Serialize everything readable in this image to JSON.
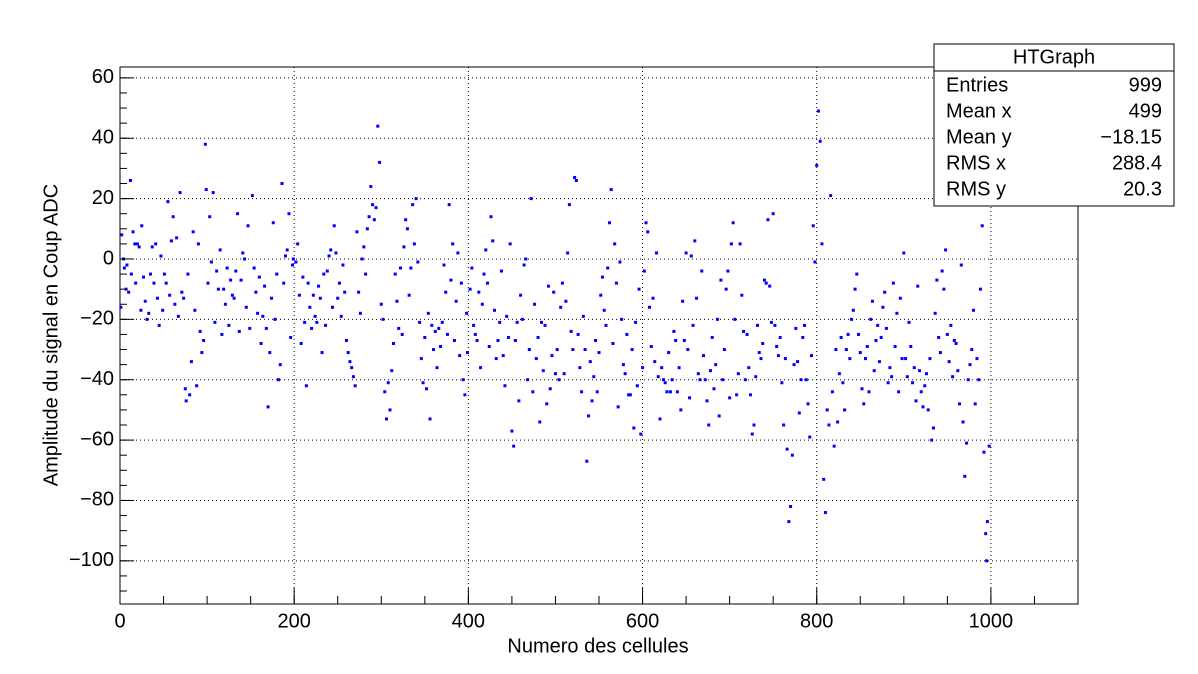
{
  "chart_data": {
    "type": "scatter",
    "x_label": "Numero des cellules",
    "y_label": "Amplitude du signal en Coup ADC",
    "color": "#0000ff",
    "grid": true,
    "xlim": [
      0,
      1100
    ],
    "ylim": [
      -114.3,
      63.6
    ],
    "xticks": [
      0,
      200,
      400,
      600,
      800,
      1000
    ],
    "yticks": [
      {
        "value": -100,
        "label": "−100"
      },
      {
        "value": -80,
        "label": "−80"
      },
      {
        "value": -60,
        "label": "−60"
      },
      {
        "value": -40,
        "label": "−40"
      },
      {
        "value": -20,
        "label": "−20"
      },
      0,
      20,
      40,
      60
    ],
    "stats_box": {
      "title": "HTGraph",
      "rows": [
        [
          "Entries",
          "999"
        ],
        [
          "Mean x",
          "499"
        ],
        [
          "Mean y",
          "−18.15"
        ],
        [
          "RMS x",
          "288.4"
        ],
        [
          "RMS y",
          "20.3"
        ]
      ]
    },
    "x": [
      1,
      2,
      4,
      5,
      7,
      8,
      10,
      12,
      13,
      15,
      17,
      18,
      20,
      22,
      24,
      25,
      27,
      29,
      31,
      33,
      35,
      37,
      39,
      41,
      43,
      45,
      47,
      49,
      51,
      53,
      55,
      57,
      59,
      61,
      63,
      65,
      67,
      69,
      71,
      73,
      75,
      76,
      78,
      80,
      82,
      84,
      86,
      88,
      90,
      92,
      94,
      96,
      98,
      99,
      101,
      103,
      105,
      107,
      109,
      111,
      113,
      115,
      117,
      119,
      121,
      123,
      125,
      127,
      129,
      131,
      133,
      135,
      137,
      139,
      141,
      143,
      145,
      147,
      149,
      152,
      154,
      156,
      158,
      160,
      162,
      164,
      166,
      168,
      170,
      172,
      174,
      176,
      178,
      180,
      182,
      184,
      186,
      188,
      190,
      192,
      194,
      196,
      198,
      199,
      202,
      204,
      206,
      208,
      210,
      212,
      214,
      216,
      218,
      220,
      222,
      224,
      226,
      228,
      230,
      232,
      234,
      236,
      238,
      240,
      242,
      244,
      246,
      248,
      250,
      252,
      254,
      256,
      258,
      260,
      262,
      264,
      266,
      268,
      270,
      272,
      274,
      276,
      278,
      280,
      282,
      284,
      286,
      288,
      290,
      292,
      294,
      296,
      298,
      300,
      302,
      304,
      306,
      308,
      310,
      312,
      314,
      316,
      318,
      320,
      322,
      324,
      326,
      328,
      330,
      332,
      334,
      336,
      338,
      340,
      342,
      344,
      346,
      348,
      350,
      352,
      354,
      356,
      358,
      360,
      362,
      364,
      366,
      368,
      370,
      372,
      374,
      376,
      378,
      380,
      382,
      384,
      386,
      388,
      390,
      392,
      394,
      396,
      398,
      399,
      402,
      404,
      406,
      408,
      410,
      412,
      414,
      416,
      418,
      420,
      422,
      424,
      426,
      428,
      430,
      432,
      434,
      436,
      438,
      440,
      442,
      444,
      446,
      448,
      450,
      452,
      454,
      456,
      458,
      460,
      462,
      464,
      466,
      468,
      470,
      472,
      474,
      476,
      478,
      480,
      482,
      484,
      486,
      488,
      490,
      492,
      494,
      496,
      498,
      500,
      502,
      504,
      506,
      508,
      510,
      512,
      514,
      516,
      518,
      520,
      522,
      524,
      526,
      528,
      530,
      532,
      534,
      536,
      538,
      540,
      542,
      544,
      546,
      548,
      550,
      552,
      554,
      556,
      558,
      560,
      562,
      564,
      566,
      568,
      570,
      572,
      574,
      576,
      578,
      580,
      582,
      584,
      586,
      588,
      590,
      592,
      594,
      596,
      598,
      600,
      602,
      604,
      606,
      608,
      610,
      612,
      614,
      616,
      618,
      620,
      622,
      624,
      626,
      628,
      630,
      632,
      634,
      636,
      638,
      640,
      642,
      644,
      646,
      648,
      650,
      652,
      654,
      656,
      658,
      660,
      662,
      664,
      666,
      668,
      670,
      672,
      674,
      676,
      678,
      680,
      682,
      684,
      686,
      688,
      690,
      692,
      694,
      696,
      698,
      700,
      702,
      704,
      706,
      708,
      710,
      712,
      714,
      716,
      718,
      720,
      722,
      724,
      726,
      728,
      730,
      732,
      734,
      736,
      738,
      740,
      742,
      744,
      746,
      748,
      750,
      752,
      754,
      756,
      758,
      760,
      762,
      764,
      766,
      768,
      770,
      772,
      774,
      776,
      778,
      780,
      782,
      784,
      786,
      788,
      790,
      792,
      794,
      796,
      798,
      800,
      802,
      804,
      806,
      808,
      810,
      812,
      814,
      816,
      818,
      820,
      822,
      824,
      826,
      828,
      830,
      832,
      834,
      836,
      838,
      840,
      842,
      844,
      846,
      848,
      850,
      852,
      854,
      856,
      858,
      860,
      862,
      864,
      866,
      868,
      870,
      872,
      874,
      876,
      878,
      880,
      882,
      884,
      886,
      888,
      890,
      892,
      894,
      896,
      898,
      900,
      902,
      904,
      906,
      908,
      910,
      912,
      914,
      916,
      918,
      920,
      922,
      924,
      926,
      928,
      930,
      932,
      934,
      936,
      938,
      940,
      942,
      944,
      946,
      948,
      950,
      952,
      954,
      956,
      958,
      960,
      962,
      964,
      966,
      968,
      970,
      972,
      974,
      976,
      978,
      980,
      982,
      984,
      986,
      988,
      990,
      992,
      994,
      995,
      996,
      998
    ],
    "values": [
      -16,
      8,
      0,
      -3,
      -10,
      -2,
      -11,
      26,
      -5,
      9,
      5,
      -8,
      5,
      4,
      -17,
      11,
      -6,
      -14,
      -20,
      -18,
      -5,
      4,
      -8,
      5,
      -13,
      -22,
      1,
      -17,
      -5,
      -8,
      19,
      -12,
      6,
      14,
      -15,
      7,
      -19,
      22,
      -11,
      -13,
      -43,
      -47,
      -5,
      -45,
      -34,
      9,
      -17,
      -42,
      5,
      -24,
      -31,
      -27,
      38,
      23,
      -8,
      14,
      -1,
      22,
      -21,
      -4,
      -10,
      3,
      -25,
      -10,
      -15,
      -3,
      -22,
      -7,
      -12,
      -13,
      -4,
      15,
      -24,
      -7,
      2,
      0,
      -16,
      11,
      -23,
      21,
      -3,
      -11,
      -18,
      -6,
      -28,
      -19,
      -9,
      -23,
      -49,
      -31,
      -13,
      12,
      -20,
      -5,
      -40,
      -35,
      25,
      -8,
      1,
      3,
      15,
      -26,
      -2,
      0,
      -1,
      5,
      -12,
      -28,
      -6,
      -21,
      -42,
      -8,
      -16,
      -23,
      -12,
      -19,
      -21,
      -9,
      -13,
      -31,
      -5,
      -22,
      -4,
      1,
      3,
      -16,
      11,
      2,
      -13,
      -8,
      -19,
      -2,
      -11,
      -27,
      -31,
      -34,
      -36,
      -39,
      -42,
      9,
      -11,
      -18,
      0,
      4,
      -5,
      10,
      14,
      24,
      18,
      13,
      17,
      44,
      32,
      -15,
      -20,
      -44,
      -53,
      -41,
      -50,
      -37,
      -28,
      -5,
      -14,
      -23,
      -3,
      -25,
      4,
      13,
      10,
      -12,
      -3,
      18,
      5,
      20,
      -1,
      -21,
      -33,
      -41,
      -26,
      -43,
      -18,
      -53,
      -22,
      -30,
      -24,
      -36,
      -23,
      -29,
      -21,
      -2,
      -11,
      -25,
      18,
      -7,
      5,
      -27,
      -14,
      2,
      -32,
      -8,
      -40,
      -45,
      -18,
      -31,
      -10,
      -3,
      -22,
      -25,
      -27,
      -11,
      -36,
      -15,
      -5,
      3,
      -8,
      -29,
      14,
      6,
      -17,
      -33,
      -27,
      -21,
      -4,
      -32,
      -42,
      -19,
      -26,
      5,
      -57,
      -62,
      -27,
      -21,
      -47,
      -12,
      -20,
      -2,
      0,
      -40,
      -30,
      20,
      -44,
      -15,
      -33,
      -26,
      -54,
      -21,
      -37,
      -22,
      -48,
      -9,
      -43,
      -32,
      -11,
      -38,
      -30,
      -40,
      -16,
      -8,
      -38,
      -14,
      2,
      18,
      -24,
      -30,
      27,
      26,
      -25,
      -36,
      -44,
      -19,
      -30,
      -67,
      -52,
      -34,
      -47,
      -39,
      -27,
      -44,
      -31,
      -12,
      -6,
      -17,
      -22,
      -3,
      12,
      23,
      -28,
      5,
      -8,
      -49,
      -1,
      -20,
      -35,
      -38,
      -25,
      -45,
      -45,
      -30,
      -56,
      -21,
      -42,
      -10,
      -58,
      -36,
      -4,
      12,
      9,
      -16,
      -29,
      -13,
      -34,
      2,
      -39,
      -53,
      -36,
      -40,
      -41,
      -44,
      -31,
      -44,
      -40,
      -24,
      -27,
      -44,
      -36,
      -50,
      -14,
      -27,
      2,
      -30,
      -46,
      1,
      -22,
      6,
      -13,
      -38,
      -40,
      -4,
      -32,
      -40,
      -47,
      -55,
      -37,
      -26,
      -43,
      -35,
      -20,
      -52,
      -7,
      -40,
      -30,
      -10,
      -4,
      -46,
      5,
      12,
      -20,
      -45,
      -38,
      5,
      -12,
      -24,
      -40,
      -25,
      -36,
      -45,
      -58,
      -55,
      -39,
      -22,
      -31,
      -33,
      -28,
      -7,
      -8,
      13,
      -9,
      -21,
      15,
      -22,
      -29,
      -32,
      -26,
      -41,
      -55,
      -33,
      -63,
      -87,
      -82,
      -65,
      -35,
      -23,
      -34,
      -51,
      -40,
      -26,
      -22,
      -40,
      -48,
      -59,
      -32,
      11,
      -1,
      31,
      49,
      39,
      5,
      -73,
      -84,
      -50,
      -55,
      21,
      -44,
      -62,
      -30,
      -54,
      -38,
      -26,
      -41,
      -50,
      -30,
      -25,
      -33,
      -20,
      -17,
      -10,
      -5,
      -25,
      -31,
      -43,
      -48,
      -33,
      -29,
      -44,
      -20,
      -14,
      -37,
      -27,
      -22,
      -34,
      -26,
      -16,
      -11,
      -23,
      -41,
      -36,
      -39,
      -8,
      -29,
      -18,
      -44,
      -13,
      -33,
      2,
      -33,
      -39,
      -21,
      -29,
      -41,
      -36,
      -47,
      -9,
      -37,
      -44,
      -49,
      -42,
      -38,
      -50,
      -33,
      -60,
      -56,
      -18,
      -7,
      -26,
      -31,
      -4,
      -10,
      3,
      -25,
      -34,
      -22,
      -39,
      -27,
      -28,
      -37,
      -48,
      -2,
      -54,
      -72,
      -61,
      -40,
      -35,
      -30,
      -17,
      -48,
      -33,
      -40,
      -10,
      11,
      -64,
      -91,
      -100,
      -87,
      -62
    ]
  }
}
